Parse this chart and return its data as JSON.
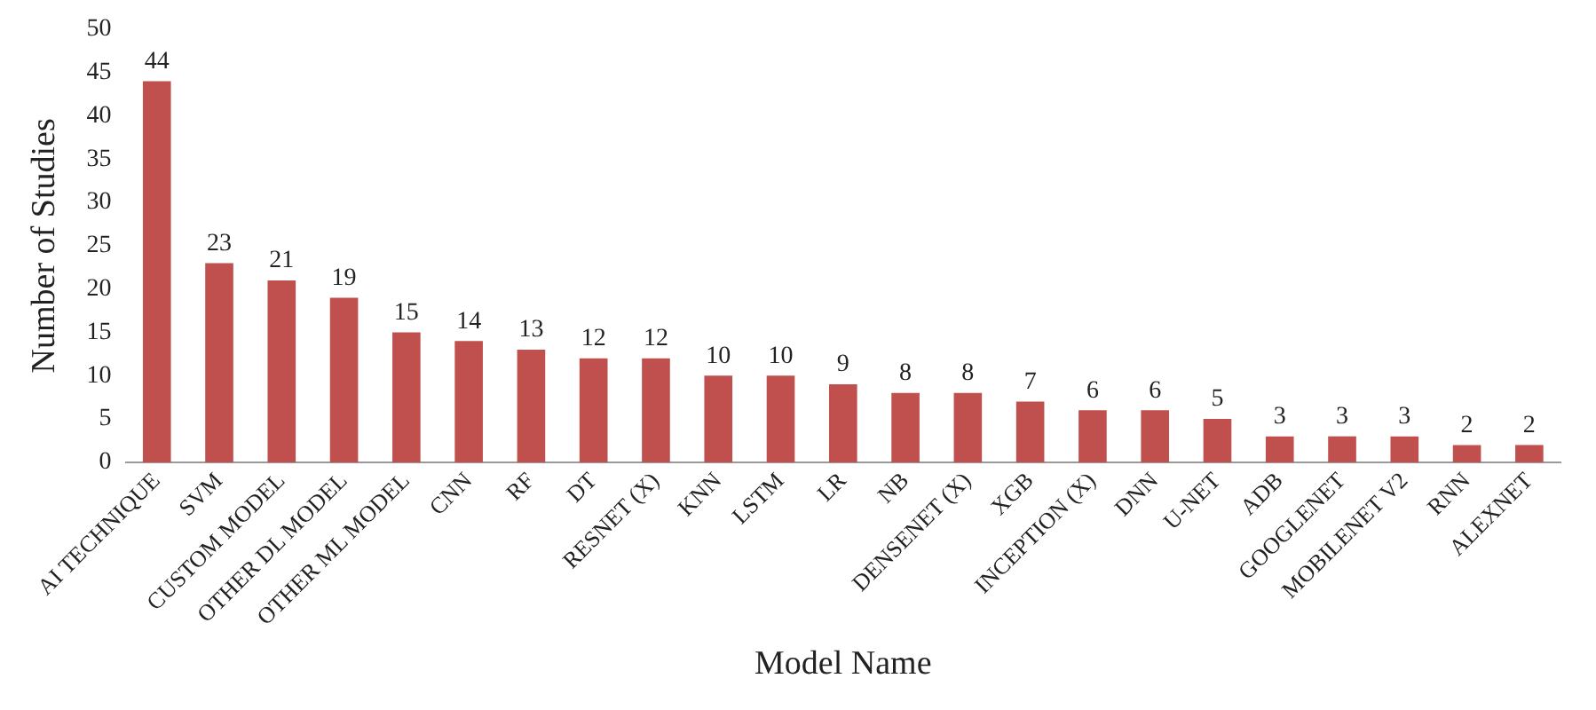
{
  "chart_data": {
    "type": "bar",
    "xlabel": "Model Name",
    "ylabel": "Number of Studies",
    "categories": [
      "AI TECHNIQUE",
      "SVM",
      "CUSTOM MODEL",
      "OTHER DL MODEL",
      "OTHER ML MODEL",
      "CNN",
      "RF",
      "DT",
      "RESNET (X)",
      "KNN",
      "LSTM",
      "LR",
      "NB",
      "DENSENET (X)",
      "XGB",
      "INCEPTION (X)",
      "DNN",
      "U-NET",
      "ADB",
      "GOOGLENET",
      "MOBILENET V2",
      "RNN",
      "ALEXNET"
    ],
    "values": [
      44,
      23,
      21,
      19,
      15,
      14,
      13,
      12,
      12,
      10,
      10,
      9,
      8,
      8,
      7,
      6,
      6,
      5,
      3,
      3,
      3,
      2,
      2
    ],
    "color": "#c0504d",
    "ylim": [
      0,
      50
    ],
    "yticks": [
      0,
      5,
      10,
      15,
      20,
      25,
      30,
      35,
      40,
      45,
      50
    ],
    "grid": false,
    "legend": false,
    "data_labels": true
  }
}
